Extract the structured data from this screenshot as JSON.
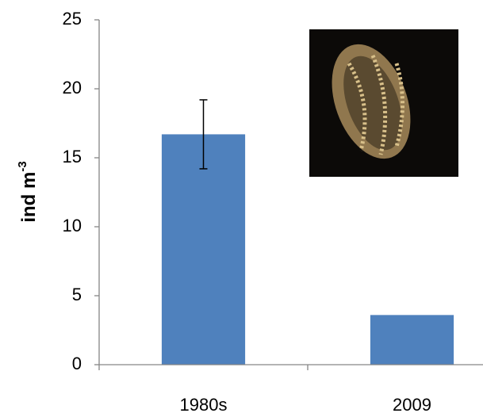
{
  "chart_data": {
    "type": "bar",
    "y_label": "ind m",
    "y_label_superscript": "-3",
    "categories": [
      "1980s",
      "2009"
    ],
    "values": [
      16.7,
      3.6
    ],
    "errors": [
      2.5,
      null
    ],
    "color": "#4f81bd",
    "ylim": [
      0,
      25
    ],
    "yticks": [
      0,
      5,
      10,
      15,
      20,
      25
    ],
    "grid": false
  }
}
